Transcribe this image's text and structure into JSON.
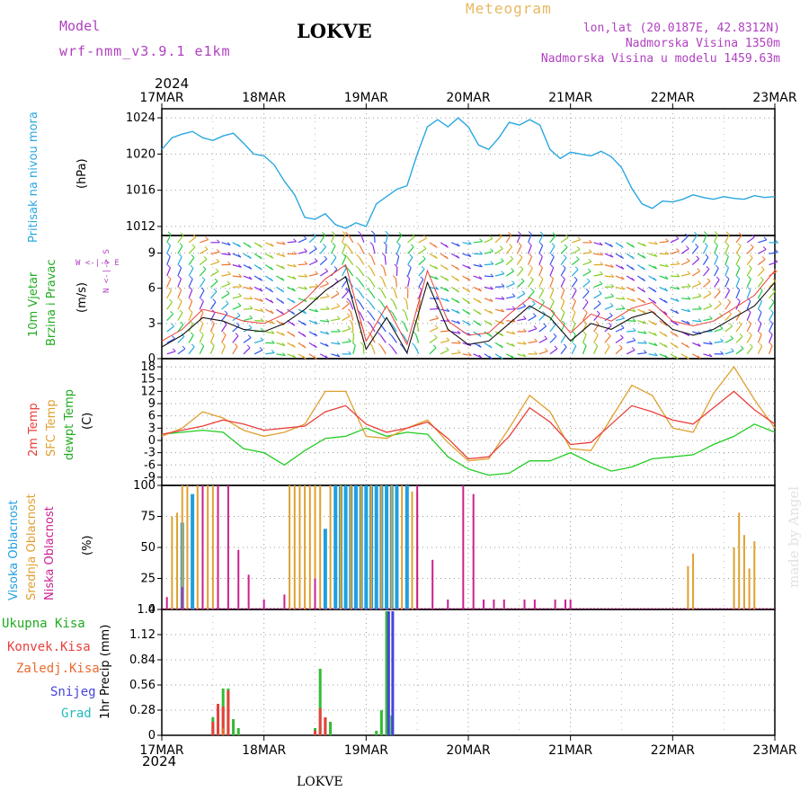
{
  "header": {
    "model_label": "Model",
    "model_name": "wrf-nmm_v3.9.1 e1km",
    "station": "LOKVE",
    "meteogram": "Meteogram",
    "coords": "lon,lat (20.0187E, 42.8312N)",
    "altitude": "Nadmorska Visina 1350m",
    "model_altitude": "Nadmorska Visina u modelu 1459.63m",
    "year_top": "2024",
    "year_bottom": "2024",
    "footer_station": "LOKVE",
    "credit": "made by Angel"
  },
  "colors": {
    "pressure": "#2aa7e0",
    "t2m": "#e8403c",
    "sfc": "#e0a030",
    "dewpt": "#22cc22",
    "high_cloud": "#1e9fe0",
    "mid_cloud": "#e0a030",
    "low_cloud": "#cc2090",
    "total_precip": "#33bb33",
    "conv_precip": "#e8403c",
    "frz_precip": "#e86a30",
    "snow": "#4444dd",
    "graupel": "#22bbbb",
    "grid": "#999999"
  },
  "axis_labels": {
    "pressure": [
      "Pritisak na nivou mora",
      "(hPa)"
    ],
    "wind": [
      "10m Vjetar",
      "Brzina i Pravac",
      "(m/s)"
    ],
    "wind_compass": [
      "W <-|-> E",
      "N <-|-> S"
    ],
    "temp": [
      "2m Temp",
      "SFC Temp",
      "dewpt Temp",
      "(C)"
    ],
    "cloud": [
      "Visoka Oblacnost",
      "Srednja Oblacnost",
      "Niska Oblacnost",
      "(%)"
    ],
    "precip_unit": "1hr Precip (mm)",
    "precip_legend": [
      "Ukupna Kisa",
      "Konvek.Kisa",
      "Zaledj.Kisa",
      "Snijeg",
      "Grad"
    ]
  },
  "chart_data": [
    {
      "type": "line",
      "panel": "pressure",
      "x_dates": [
        "17MAR",
        "18MAR",
        "19MAR",
        "20MAR",
        "21MAR",
        "22MAR",
        "23MAR"
      ],
      "ylabel": "(hPa)",
      "ylim": [
        1011,
        1025
      ],
      "yticks": [
        1012,
        1016,
        1020,
        1024
      ],
      "series": [
        {
          "name": "Pritisak na nivou mora",
          "x": [
            0,
            0.1,
            0.2,
            0.3,
            0.4,
            0.5,
            0.6,
            0.7,
            0.8,
            0.9,
            1.0,
            1.1,
            1.2,
            1.3,
            1.4,
            1.5,
            1.6,
            1.7,
            1.8,
            1.9,
            2.0,
            2.1,
            2.2,
            2.3,
            2.4,
            2.5,
            2.6,
            2.7,
            2.8,
            2.9,
            3.0,
            3.1,
            3.2,
            3.3,
            3.4,
            3.5,
            3.6,
            3.7,
            3.8,
            3.9,
            4.0,
            4.1,
            4.2,
            4.3,
            4.4,
            4.5,
            4.6,
            4.7,
            4.8,
            4.9,
            5.0,
            5.1,
            5.2,
            5.3,
            5.4,
            5.5,
            5.6,
            5.7,
            5.8,
            5.9,
            6.0
          ],
          "y": [
            1020.5,
            1021.8,
            1022.2,
            1022.5,
            1021.8,
            1021.5,
            1022.0,
            1022.3,
            1021.2,
            1020.0,
            1019.8,
            1018.8,
            1017.0,
            1015.5,
            1013.0,
            1012.8,
            1013.4,
            1012.2,
            1011.8,
            1012.4,
            1012.0,
            1014.5,
            1015.3,
            1016.1,
            1016.5,
            1020.0,
            1023.0,
            1023.8,
            1023.0,
            1024.0,
            1023.0,
            1021.0,
            1020.5,
            1021.8,
            1023.5,
            1023.2,
            1023.8,
            1023.2,
            1020.5,
            1019.5,
            1020.2,
            1020.0,
            1019.8,
            1020.3,
            1019.7,
            1018.5,
            1016.2,
            1014.5,
            1014.0,
            1014.8,
            1014.7,
            1015.0,
            1015.5,
            1015.2,
            1015.0,
            1015.3,
            1015.1,
            1015.0,
            1015.4,
            1015.2,
            1015.3
          ]
        }
      ]
    },
    {
      "type": "line",
      "panel": "wind",
      "ylabel": "(m/s)",
      "ylim": [
        0,
        10.5
      ],
      "yticks": [
        0,
        3,
        6,
        9
      ],
      "series": [
        {
          "name": "10m wind speed",
          "x": [
            0,
            0.2,
            0.4,
            0.6,
            0.8,
            1.0,
            1.2,
            1.4,
            1.6,
            1.8,
            2.0,
            2.2,
            2.4,
            2.6,
            2.8,
            3.0,
            3.2,
            3.4,
            3.6,
            3.8,
            4.0,
            4.2,
            4.4,
            4.6,
            4.8,
            5.0,
            5.2,
            5.4,
            5.6,
            5.8,
            6.0
          ],
          "y": [
            1.0,
            2.0,
            3.5,
            3.2,
            2.5,
            2.3,
            3.0,
            4.2,
            5.8,
            7.0,
            0.8,
            3.5,
            0.5,
            6.5,
            2.5,
            1.2,
            1.5,
            3.0,
            4.5,
            3.5,
            1.5,
            3.0,
            2.5,
            3.5,
            4.0,
            2.5,
            2.0,
            2.5,
            3.5,
            4.5,
            6.5
          ]
        },
        {
          "name": "10m wind gust",
          "x": [
            0,
            0.2,
            0.4,
            0.6,
            0.8,
            1.0,
            1.2,
            1.4,
            1.6,
            1.8,
            2.0,
            2.2,
            2.4,
            2.6,
            2.8,
            3.0,
            3.2,
            3.4,
            3.6,
            3.8,
            4.0,
            4.2,
            4.4,
            4.6,
            4.8,
            5.0,
            5.2,
            5.4,
            5.6,
            5.8,
            6.0
          ],
          "y": [
            1.5,
            2.5,
            4.2,
            3.8,
            3.2,
            3.0,
            3.8,
            5.0,
            6.8,
            8.0,
            1.5,
            4.5,
            1.2,
            7.5,
            3.2,
            2.0,
            2.2,
            3.8,
            5.2,
            4.2,
            2.2,
            3.8,
            3.2,
            4.3,
            4.8,
            3.2,
            2.8,
            3.2,
            4.3,
            5.4,
            7.5
          ]
        }
      ]
    },
    {
      "type": "line",
      "panel": "temperature",
      "ylabel": "(C)",
      "ylim": [
        -11,
        20
      ],
      "yticks": [
        -9,
        -6,
        -3,
        0,
        3,
        6,
        9,
        12,
        15,
        18
      ],
      "series": [
        {
          "name": "2m Temp",
          "x": [
            0,
            0.2,
            0.4,
            0.6,
            0.8,
            1.0,
            1.2,
            1.4,
            1.6,
            1.8,
            2.0,
            2.2,
            2.4,
            2.6,
            2.8,
            3.0,
            3.2,
            3.4,
            3.6,
            3.8,
            4.0,
            4.2,
            4.4,
            4.6,
            4.8,
            5.0,
            5.2,
            5.4,
            5.6,
            5.8,
            6.0
          ],
          "y": [
            1.5,
            2.5,
            3.5,
            5.0,
            4.0,
            2.5,
            3.0,
            3.5,
            7.0,
            8.5,
            4.0,
            2.0,
            3.0,
            4.5,
            0.5,
            -4.5,
            -4.0,
            1.0,
            8.0,
            4.5,
            -1.0,
            -0.5,
            4.0,
            8.5,
            7.0,
            5.0,
            4.0,
            8.0,
            12.0,
            7.5,
            4.0
          ]
        },
        {
          "name": "SFC Temp",
          "x": [
            0,
            0.2,
            0.4,
            0.6,
            0.8,
            1.0,
            1.2,
            1.4,
            1.6,
            1.8,
            2.0,
            2.2,
            2.4,
            2.6,
            2.8,
            3.0,
            3.2,
            3.4,
            3.6,
            3.8,
            4.0,
            4.2,
            4.4,
            4.6,
            4.8,
            5.0,
            5.2,
            5.4,
            5.6,
            5.8,
            6.0
          ],
          "y": [
            1.0,
            3.0,
            7.0,
            5.5,
            2.5,
            1.0,
            2.0,
            4.0,
            12.0,
            12.0,
            1.0,
            0.5,
            3.0,
            5.0,
            -0.5,
            -5.0,
            -4.5,
            3.0,
            11.0,
            7.0,
            -2.0,
            -2.5,
            5.5,
            13.5,
            11.0,
            3.0,
            2.0,
            11.5,
            18.0,
            10.0,
            3.0
          ]
        },
        {
          "name": "dewpt Temp",
          "x": [
            0,
            0.2,
            0.4,
            0.6,
            0.8,
            1.0,
            1.2,
            1.4,
            1.6,
            1.8,
            2.0,
            2.2,
            2.4,
            2.6,
            2.8,
            3.0,
            3.2,
            3.4,
            3.6,
            3.8,
            4.0,
            4.2,
            4.4,
            4.6,
            4.8,
            5.0,
            5.2,
            5.4,
            5.6,
            5.8,
            6.0
          ],
          "y": [
            1.5,
            2.0,
            2.5,
            2.0,
            -2.0,
            -3.0,
            -6.0,
            -2.5,
            0.5,
            1.0,
            3.0,
            1.0,
            2.0,
            1.5,
            -4.0,
            -7.0,
            -8.5,
            -8.0,
            -5.0,
            -5.0,
            -3.0,
            -5.5,
            -7.5,
            -6.5,
            -4.5,
            -4.0,
            -3.5,
            -1.0,
            1.0,
            4.0,
            2.0
          ]
        }
      ]
    },
    {
      "type": "bar",
      "panel": "cloud",
      "ylabel": "(%)",
      "ylim": [
        0,
        100
      ],
      "yticks": [
        0,
        25,
        50,
        75,
        100
      ],
      "series": [
        {
          "name": "Visoka Oblacnost",
          "x": [
            0.2,
            0.3,
            1.6,
            1.7,
            1.75,
            1.8,
            1.85,
            1.9,
            1.95,
            2.0,
            2.05,
            2.1,
            2.15,
            2.2,
            2.25,
            2.3,
            2.4
          ],
          "values": [
            70,
            93,
            65,
            100,
            100,
            100,
            100,
            100,
            100,
            100,
            100,
            100,
            100,
            100,
            100,
            100,
            100
          ]
        },
        {
          "name": "Srednja Oblacnost",
          "x": [
            0.1,
            0.15,
            0.2,
            0.25,
            0.35,
            0.4,
            0.45,
            0.5,
            0.55,
            1.25,
            1.3,
            1.35,
            1.4,
            1.45,
            1.5,
            1.55,
            1.65,
            1.75,
            1.85,
            1.95,
            2.05,
            2.15,
            2.25,
            2.35,
            2.45,
            2.5,
            5.15,
            5.2,
            5.6,
            5.65,
            5.7,
            5.75,
            5.8
          ],
          "values": [
            75,
            78,
            100,
            100,
            100,
            100,
            100,
            100,
            100,
            100,
            100,
            100,
            100,
            100,
            100,
            100,
            100,
            100,
            100,
            100,
            100,
            100,
            100,
            100,
            95,
            95,
            35,
            45,
            50,
            78,
            60,
            33,
            55
          ]
        },
        {
          "name": "Niska Oblacnost",
          "x": [
            0.05,
            0.2,
            0.4,
            0.55,
            0.65,
            0.75,
            0.85,
            1.0,
            1.2,
            1.5,
            2.5,
            2.65,
            2.8,
            2.95,
            3.05,
            3.15,
            3.25,
            3.35,
            3.55,
            3.65,
            3.85,
            3.95,
            4.0
          ],
          "values": [
            10,
            18,
            100,
            100,
            100,
            48,
            28,
            8,
            12,
            25,
            100,
            40,
            8,
            100,
            93,
            8,
            8,
            8,
            8,
            8,
            8,
            8,
            8
          ]
        }
      ]
    },
    {
      "type": "bar",
      "panel": "precip",
      "ylabel": "1hr Precip (mm)",
      "ylim": [
        0,
        1.4
      ],
      "yticks": [
        0,
        0.28,
        0.56,
        0.84,
        1.12,
        1.4
      ],
      "x_dates": [
        "17MAR",
        "18MAR",
        "19MAR",
        "20MAR",
        "21MAR",
        "22MAR",
        "23MAR"
      ],
      "series": [
        {
          "name": "Ukupna Kisa",
          "x": [
            0.5,
            0.55,
            0.6,
            0.65,
            0.7,
            0.75,
            1.5,
            1.55,
            1.6,
            1.65,
            2.1,
            2.15,
            2.2,
            2.25
          ],
          "values": [
            0.2,
            0.35,
            0.52,
            0.52,
            0.18,
            0.08,
            0.08,
            0.74,
            0.2,
            0.15,
            0.05,
            0.28,
            1.38,
            0.22
          ]
        },
        {
          "name": "Konvek.Kisa",
          "x": [
            0.5,
            0.55,
            0.6,
            0.65,
            1.5,
            1.55,
            1.6
          ],
          "values": [
            0.15,
            0.35,
            0.32,
            0.5,
            0.05,
            0.3,
            0.2
          ]
        },
        {
          "name": "Zaledj.Kisa",
          "x": [
            0.6
          ],
          "values": [
            0.08
          ]
        },
        {
          "name": "Snijeg",
          "x": [
            2.22,
            2.26
          ],
          "values": [
            1.38,
            1.38
          ]
        },
        {
          "name": "Grad",
          "x": [],
          "values": []
        }
      ]
    }
  ]
}
